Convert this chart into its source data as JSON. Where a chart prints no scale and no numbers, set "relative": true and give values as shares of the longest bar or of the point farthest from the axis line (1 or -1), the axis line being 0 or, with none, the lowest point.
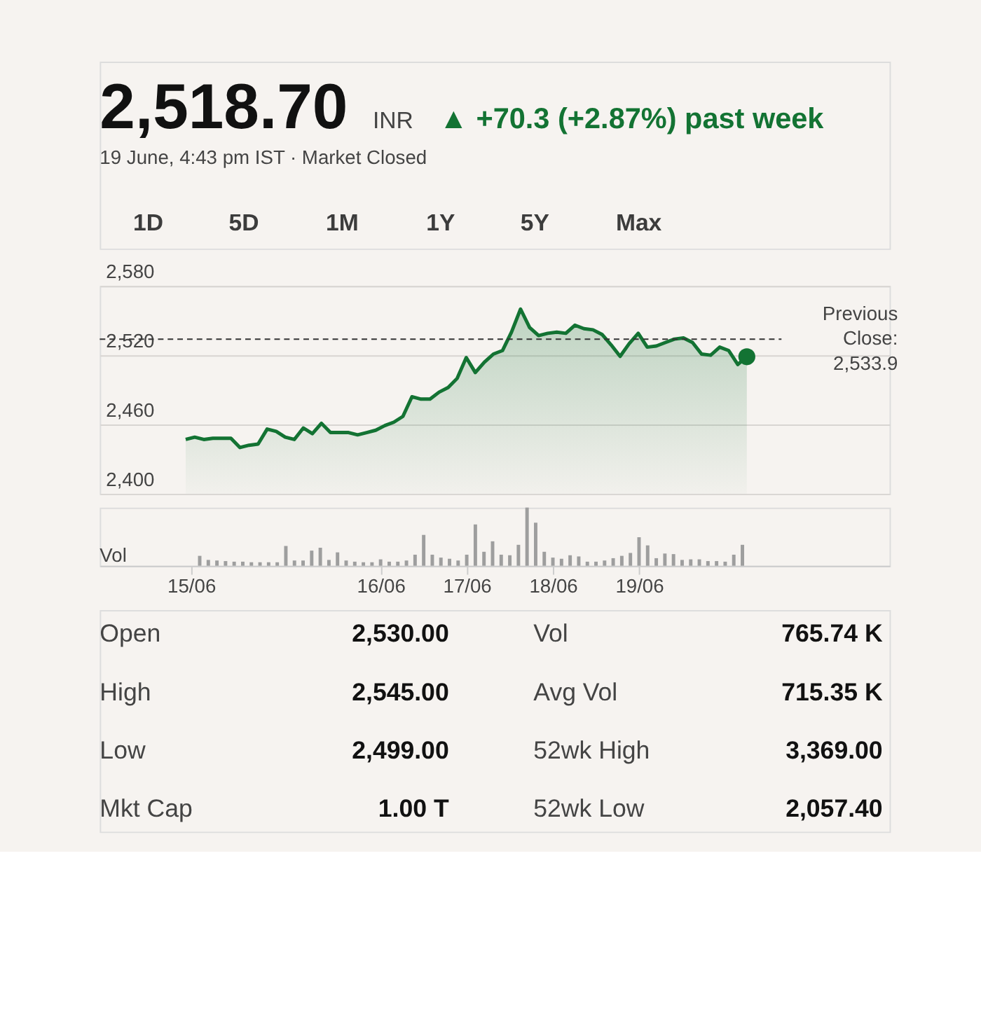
{
  "chart_data": [
    {
      "type": "area",
      "title": "2,518.70",
      "subtitle": "19 June, 4:43 pm IST · Market Closed",
      "annotations": [
        "INR",
        "▲ +70.3 (+2.87%) past week",
        "1D",
        "5D",
        "1M",
        "1Y",
        "5Y",
        "Max"
      ],
      "categories": [
        null,
        null,
        null,
        null,
        null,
        null,
        null,
        null,
        null,
        null,
        null,
        null,
        null,
        null,
        null,
        null,
        null,
        null,
        null,
        null,
        null,
        null,
        null,
        null,
        null,
        null,
        null,
        null,
        null,
        null,
        null,
        null,
        null,
        null,
        null,
        null,
        null,
        null,
        null,
        null,
        null,
        null,
        null,
        null,
        null,
        null,
        null,
        null,
        null,
        null,
        null,
        null,
        null,
        null,
        null,
        null,
        null,
        null,
        null,
        null,
        null,
        null,
        null
      ],
      "ylim": [
        2400,
        2580
      ],
      "yticks": [
        {
          "value": 2400,
          "label": "2,400"
        },
        {
          "value": 2460,
          "label": "2,460"
        },
        {
          "value": 2520,
          "label": "2,520"
        },
        {
          "value": 2580,
          "label": "2,580"
        }
      ],
      "tick_labels": "y",
      "grid": "y",
      "line_style": "solid",
      "ref_lines": [
        {
          "axis": "y",
          "value": 2533.9,
          "label": "Previous Close: 2,533.9",
          "line_style": "dashed",
          "color": "#333333"
        }
      ],
      "series": [
        {
          "type": "area",
          "color": "#137333",
          "values": [
            2447,
            2449,
            2447,
            2448,
            2448,
            2448,
            2440,
            2442,
            2443,
            2456,
            2454,
            2449,
            2447,
            2457,
            2452,
            2461,
            2453,
            2453,
            2453,
            2451,
            2453,
            2455,
            2459,
            2462,
            2467,
            2484,
            2482,
            2482,
            2488,
            2492,
            2500,
            2518,
            2505,
            2514,
            2521,
            2524,
            2540,
            2560,
            2544,
            2537,
            2539,
            2540,
            2539,
            2546,
            2543,
            2542,
            2538,
            2529,
            2519,
            2530,
            2539,
            2527,
            2528,
            2531,
            2534,
            2535,
            2531,
            2521,
            2520,
            2527,
            2524,
            2512,
            2518.7
          ]
        },
        {
          "type": "scatter",
          "marker": "circle",
          "color": "#137333",
          "values": [
            null,
            null,
            null,
            null,
            null,
            null,
            null,
            null,
            null,
            null,
            null,
            null,
            null,
            null,
            null,
            null,
            null,
            null,
            null,
            null,
            null,
            null,
            null,
            null,
            null,
            null,
            null,
            null,
            null,
            null,
            null,
            null,
            null,
            null,
            null,
            null,
            null,
            null,
            null,
            null,
            null,
            null,
            null,
            null,
            null,
            null,
            null,
            null,
            null,
            null,
            null,
            null,
            null,
            null,
            null,
            null,
            null,
            null,
            null,
            null,
            null,
            null,
            2518.7
          ]
        }
      ]
    },
    {
      "type": "bar",
      "relative": true,
      "ylabel": "Vol",
      "color": "#9e9e9e",
      "tick_labels": "x",
      "grid": false,
      "categories": [
        "15/06",
        null,
        null,
        null,
        null,
        null,
        null,
        null,
        null,
        null,
        null,
        null,
        null,
        null,
        null,
        null,
        null,
        null,
        null,
        null,
        null,
        null,
        "16/06",
        null,
        null,
        null,
        null,
        null,
        null,
        null,
        null,
        null,
        "17/06",
        null,
        null,
        null,
        null,
        null,
        null,
        null,
        null,
        null,
        "18/06",
        null,
        null,
        null,
        null,
        null,
        null,
        null,
        null,
        null,
        "19/06",
        null,
        null,
        null,
        null,
        null,
        null,
        null,
        null,
        null,
        null,
        null,
        null
      ],
      "values": [
        null,
        0.17,
        0.1,
        0.09,
        0.08,
        0.07,
        0.07,
        0.06,
        0.06,
        0.06,
        0.06,
        0.34,
        0.09,
        0.09,
        0.26,
        0.31,
        0.1,
        0.23,
        0.09,
        0.07,
        0.06,
        0.06,
        0.11,
        0.07,
        0.07,
        0.09,
        0.19,
        0.53,
        0.19,
        0.14,
        0.12,
        0.09,
        0.19,
        0.71,
        0.24,
        0.42,
        0.19,
        0.18,
        0.36,
        1,
        0.74,
        0.24,
        0.14,
        0.12,
        0.18,
        0.16,
        0.07,
        0.07,
        0.09,
        0.13,
        0.17,
        0.22,
        0.49,
        0.35,
        0.13,
        0.21,
        0.2,
        0.1,
        0.11,
        0.11,
        0.08,
        0.08,
        0.07,
        0.19,
        0.36
      ]
    },
    {
      "type": "other",
      "annotations": [
        "Open",
        "2,530.00",
        "High",
        "2,545.00",
        "Low",
        "2,499.00",
        "Mkt Cap",
        "1.00 T",
        "Vol",
        "765.74 K",
        "Avg Vol",
        "715.35 K",
        "52wk High",
        "3,369.00",
        "52wk Low",
        "2,057.40"
      ]
    }
  ]
}
